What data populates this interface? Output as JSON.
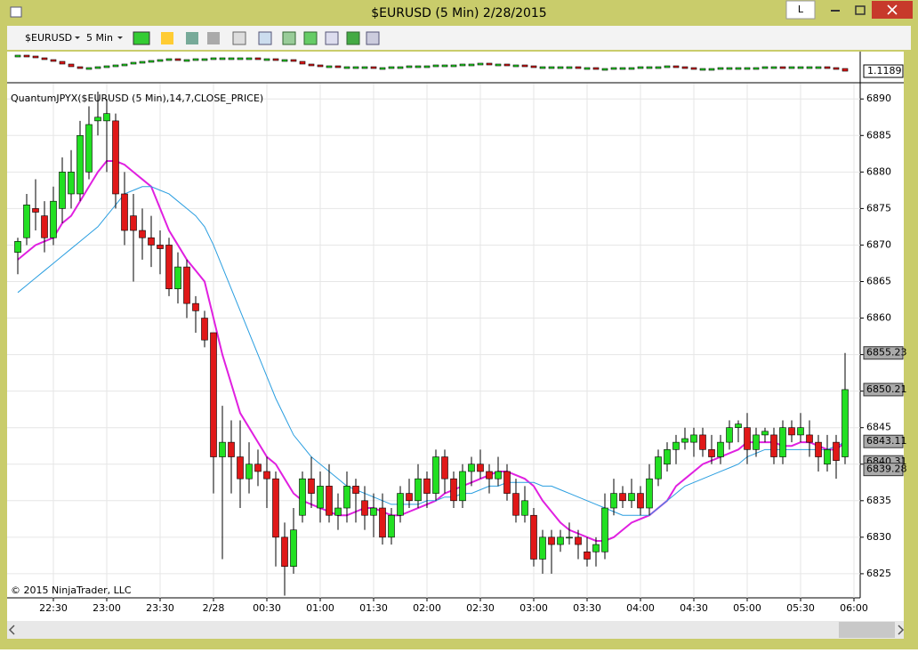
{
  "window": {
    "title": "$EURUSD (5 Min)  2/28/2015",
    "button": "L"
  },
  "toolbar": {
    "instrument": "$EURUSD",
    "interval": "5 Min"
  },
  "chart_data": {
    "type": "candlestick",
    "indicator_label": "QuantumJPYX($EURUSD (5 Min),14,7,CLOSE_PRICE)",
    "copyright": "© 2015 NinjaTrader, LLC",
    "categories": [
      null,
      null,
      null,
      null,
      "22:30",
      null,
      null,
      null,
      null,
      null,
      "23:00",
      null,
      null,
      null,
      null,
      null,
      "23:30",
      null,
      null,
      null,
      null,
      null,
      "2/28",
      null,
      null,
      null,
      null,
      null,
      "00:30",
      null,
      null,
      null,
      null,
      null,
      "01:00",
      null,
      null,
      null,
      null,
      null,
      "01:30",
      null,
      null,
      null,
      null,
      null,
      "02:00",
      null,
      null,
      null,
      null,
      null,
      "02:30",
      null,
      null,
      null,
      null,
      null,
      "03:00",
      null,
      null,
      null,
      null,
      null,
      "03:30",
      null,
      null,
      null,
      null,
      null,
      "04:00",
      null,
      null,
      null,
      null,
      null,
      "04:30",
      null,
      null,
      null,
      null,
      null,
      "05:00",
      null,
      null,
      null,
      null,
      null,
      "05:30",
      null,
      null,
      null,
      null,
      null,
      "06:00"
    ],
    "series": [
      {
        "name": "$EURUSD",
        "up_color": "#22e022",
        "down_color": "#e01818",
        "open": [
          6869,
          6871,
          6875,
          6874,
          6871,
          6875,
          6877,
          6877,
          6880,
          6887,
          6887,
          6887,
          6877,
          6874,
          6872,
          6871,
          6870,
          6870,
          6864,
          6867,
          6862,
          6860,
          6858,
          6841,
          6843,
          6841,
          6838,
          6840,
          6839,
          6838,
          6830,
          6826,
          6833,
          6838,
          6834,
          6837,
          6833,
          6834,
          6837,
          6835,
          6833,
          6834,
          6830,
          6833,
          6836,
          6835,
          6838,
          6836,
          6841,
          6838,
          6835,
          6839,
          6840,
          6839,
          6838,
          6839,
          6836,
          6833,
          6833,
          6827,
          6830,
          6829,
          6830,
          6830,
          6828,
          6828,
          6828,
          6834,
          6836,
          6835,
          6836,
          6834,
          6838,
          6840,
          6842,
          6843,
          6843,
          6844,
          6842,
          6841,
          6843,
          6845,
          6845,
          6842,
          6844,
          6844,
          6841,
          6845,
          6844,
          6844,
          6843,
          6840,
          6843,
          6841,
          null
        ],
        "high": [
          6871,
          6877,
          6879,
          6876,
          6878,
          6882,
          6883,
          6887,
          6889,
          6891,
          6890,
          6888,
          6880,
          6877,
          6875,
          6874,
          6872,
          6871,
          6869,
          6868,
          6863,
          6861,
          6858,
          6848,
          6846,
          6846,
          6843,
          6842,
          6841,
          6839,
          6832,
          6834,
          6839,
          6841,
          6839,
          6840,
          6836,
          6839,
          6838,
          6837,
          6836,
          6836,
          6834,
          6837,
          6838,
          6840,
          6839,
          6842,
          6842,
          6839,
          6840,
          6841,
          6842,
          6840,
          6841,
          6840,
          6838,
          6837,
          6834,
          6831,
          6831,
          6831,
          6832,
          6831,
          6830,
          6830,
          6836,
          6838,
          6837,
          6838,
          6837,
          6840,
          6842,
          6843,
          6844,
          6845,
          6845,
          6845,
          6844,
          6844,
          6846,
          6846,
          6847,
          6845,
          6845,
          6845,
          6846,
          6846,
          6847,
          6846,
          6844,
          6844,
          6844,
          6855.23,
          null
        ],
        "low": [
          6866,
          6870,
          6872,
          6869,
          6870,
          6873,
          6875,
          6876,
          6879,
          6885,
          6880,
          6875,
          6870,
          6865,
          6868,
          6867,
          6866,
          6863,
          6862,
          6860,
          6858,
          6856,
          6836,
          6827,
          6836,
          6834,
          6836,
          6837,
          6834,
          6826,
          6822,
          6825,
          6832,
          6834,
          6832,
          6832,
          6831,
          6832,
          6832,
          6831,
          6830,
          6829,
          6829,
          6832,
          6834,
          6834,
          6834,
          6835,
          6836,
          6834,
          6834,
          6837,
          6838,
          6836,
          6837,
          6835,
          6832,
          6832,
          6826,
          6825,
          6825,
          6828,
          6829,
          6827,
          6826,
          6826,
          6827,
          6833,
          6834,
          6834,
          6833,
          6833,
          6837,
          6839,
          6840,
          6842,
          6841,
          6841,
          6840,
          6840,
          6842,
          6843,
          6840,
          6841,
          6843,
          6840,
          6840,
          6843,
          6843,
          6841,
          6839,
          6839,
          6838,
          6840,
          null
        ],
        "close": [
          6870.5,
          6875.5,
          6874.5,
          6871,
          6876,
          6880,
          6880,
          6885,
          6886.5,
          6887.5,
          6888,
          6877,
          6872,
          6872,
          6871,
          6870,
          6869.5,
          6864,
          6867,
          6862,
          6861,
          6857,
          6841,
          6843,
          6841,
          6838,
          6840,
          6839,
          6838,
          6830,
          6826,
          6831,
          6838,
          6836,
          6837,
          6833,
          6834,
          6837,
          6836,
          6833,
          6834,
          6830,
          6833,
          6836,
          6835,
          6838,
          6836,
          6841,
          6838,
          6835,
          6839,
          6840,
          6839,
          6838,
          6839,
          6836,
          6833,
          6835,
          6827,
          6830,
          6829,
          6830,
          6830,
          6829,
          6827,
          6829,
          6834,
          6836,
          6835,
          6836,
          6834,
          6838,
          6841,
          6842,
          6843,
          6843.5,
          6844,
          6842,
          6841,
          6843,
          6845,
          6845.5,
          6842,
          6844,
          6844.5,
          6841,
          6845,
          6844,
          6845,
          6843,
          6841,
          6842,
          6840.5,
          6850.21,
          null
        ]
      }
    ],
    "lines": [
      {
        "color": "#e020e0",
        "values": [
          6868,
          6869,
          6870,
          6870.5,
          6871,
          6873,
          6874,
          6876,
          6878,
          6880,
          6881.5,
          6881.5,
          6881,
          6880,
          6879,
          6878,
          6875,
          6872,
          6870,
          6868,
          6866.5,
          6865,
          6860,
          6855,
          6851,
          6847,
          6845,
          6843,
          6841,
          6840,
          6838,
          6836,
          6835,
          6834.5,
          6834,
          6833.5,
          6833,
          6833,
          6833.5,
          6834,
          6834,
          6833.5,
          6833,
          6833,
          6833.5,
          6834,
          6834.5,
          6835,
          6836,
          6836.5,
          6837,
          6837.5,
          6838,
          6838.5,
          6839,
          6839,
          6838.5,
          6838,
          6837,
          6835,
          6833.5,
          6832,
          6831,
          6830.5,
          6830,
          6829.5,
          6829.5,
          6830,
          6831,
          6832,
          6832.5,
          6833,
          6834,
          6835,
          6837,
          6838,
          6839,
          6840,
          6840.5,
          6841,
          6841.5,
          6842,
          6843,
          6843,
          6843,
          6843,
          6842.5,
          6842.5,
          6843,
          6843,
          6842.5,
          6842,
          6842,
          6843,
          null
        ]
      },
      {
        "color": "#2a9ee0",
        "values": [
          6863.5,
          6864.5,
          6865.5,
          6866.5,
          6867.5,
          6868.5,
          6869.5,
          6870.5,
          6871.5,
          6872.5,
          6874,
          6875.5,
          6877,
          6877.5,
          6878,
          6878,
          6877.5,
          6877,
          6876,
          6875,
          6874,
          6872.5,
          6870,
          6867,
          6864,
          6861,
          6858,
          6855,
          6852,
          6849,
          6846.5,
          6844,
          6842.5,
          6841,
          6840,
          6839,
          6838,
          6837,
          6836.5,
          6836,
          6835.5,
          6835,
          6834.5,
          6834.5,
          6834.5,
          6834.5,
          6835,
          6835,
          6835.5,
          6835.5,
          6836,
          6836,
          6836.5,
          6837,
          6837,
          6837.5,
          6837.5,
          6837.5,
          6837.5,
          6837,
          6837,
          6836.5,
          6836,
          6835.5,
          6835,
          6834.5,
          6834,
          6833.5,
          6833,
          6833,
          6833,
          6833,
          6834,
          6835,
          6836,
          6837,
          6837.5,
          6838,
          6838.5,
          6839,
          6839.5,
          6840,
          6841,
          6841.5,
          6842,
          6842,
          6842,
          6842,
          6842,
          6842,
          6842,
          6842,
          6842.5,
          6843,
          null
        ]
      }
    ],
    "price_markers": [
      6843.11,
      6840.31,
      6839.28
    ],
    "ylim": [
      6821.7,
      6892.1
    ],
    "yticks": [
      6825,
      6830,
      6835,
      6840,
      6845,
      6850,
      6855,
      6860,
      6865,
      6870,
      6875,
      6880,
      6885,
      6890
    ],
    "grid": true,
    "top_panel": {
      "ylim": [
        1.1177,
        1.1209
      ],
      "values": [
        1.1207,
        1.1206,
        1.1204,
        1.1202,
        1.12,
        1.1197,
        1.1194,
        1.1193,
        1.1193,
        1.1194,
        1.1195,
        1.1196,
        1.1197,
        1.1199,
        1.12,
        1.1201,
        1.1202,
        1.1203,
        1.1202,
        1.1202,
        1.1203,
        1.1203,
        1.1204,
        1.1204,
        1.1204,
        1.1204,
        1.1204,
        1.1203,
        1.1203,
        1.1202,
        1.1202,
        1.12,
        1.1197,
        1.1196,
        1.1195,
        1.1195,
        1.1194,
        1.1194,
        1.1194,
        1.1194,
        1.1193,
        1.1193,
        1.1194,
        1.1194,
        1.1195,
        1.1195,
        1.1195,
        1.1196,
        1.1196,
        1.1196,
        1.1197,
        1.1197,
        1.1198,
        1.1197,
        1.1197,
        1.1196,
        1.1196,
        1.1195,
        1.1194,
        1.1194,
        1.1194,
        1.1194,
        1.1194,
        1.1193,
        1.1193,
        1.1192,
        1.1192,
        1.1193,
        1.1193,
        1.1193,
        1.1194,
        1.1194,
        1.1194,
        1.1195,
        1.1194,
        1.1193,
        1.1192,
        1.1192,
        1.1192,
        1.1193,
        1.1193,
        1.1193,
        1.1193,
        1.1193,
        1.1194,
        1.1194,
        1.1193,
        1.1194,
        1.1194,
        1.1194,
        1.1194,
        1.1193,
        1.1192,
        1.1189,
        null
      ]
    }
  }
}
